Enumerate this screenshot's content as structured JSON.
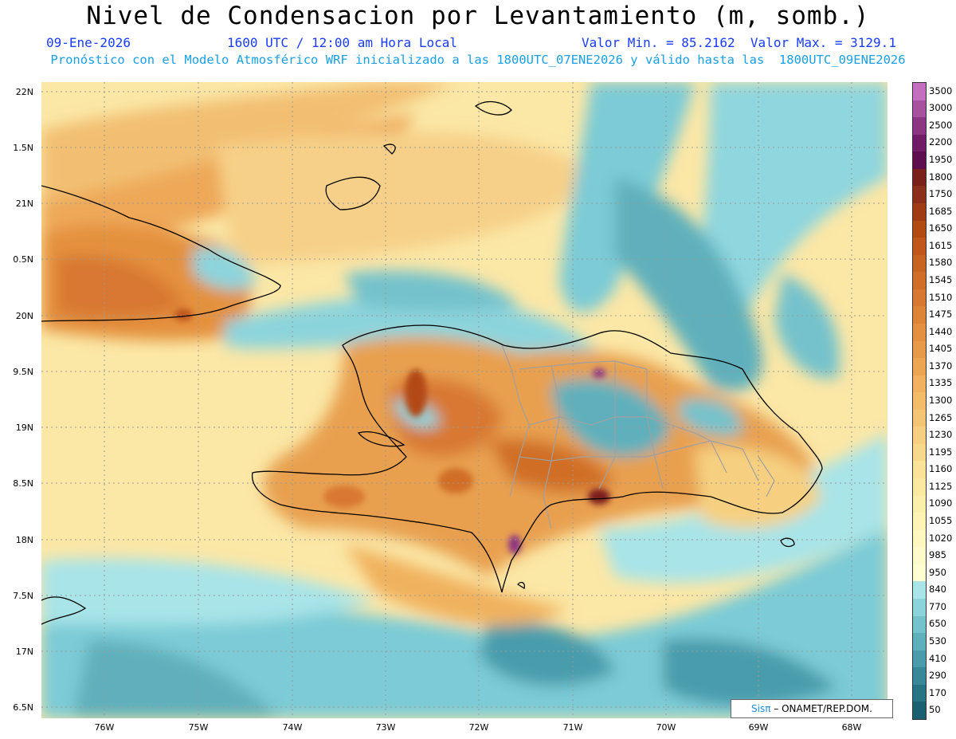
{
  "header": {
    "title": "Nivel de Condensacion por Levantamiento (m, somb.)",
    "date": "09-Ene-2026",
    "time": "1600 UTC / 12:00 am Hora Local",
    "minmax": "Valor Min. = 85.2162  Valor Max. = 3129.1",
    "model_info": "Pronóstico con el Modelo Atmosférico WRF inicializado a las 1800UTC_07ENE2026 y válido hasta las  1800UTC_09ENE2026"
  },
  "axes": {
    "lat_labels": [
      "22N",
      "1.5N",
      "21N",
      "0.5N",
      "20N",
      "9.5N",
      "19N",
      "8.5N",
      "18N",
      "7.5N",
      "17N",
      "6.5N"
    ],
    "lon_labels": [
      "76W",
      "75W",
      "74W",
      "73W",
      "72W",
      "71W",
      "70W",
      "69W",
      "68W"
    ]
  },
  "colorbar": {
    "labels": [
      "3500",
      "3000",
      "2500",
      "2200",
      "1950",
      "1800",
      "1750",
      "1685",
      "1650",
      "1615",
      "1580",
      "1545",
      "1510",
      "1475",
      "1440",
      "1405",
      "1370",
      "1335",
      "1300",
      "1265",
      "1230",
      "1195",
      "1160",
      "1125",
      "1090",
      "1055",
      "1020",
      "985",
      "950",
      "840",
      "770",
      "650",
      "530",
      "410",
      "290",
      "170",
      "50"
    ],
    "colors": [
      "#c46ec0",
      "#a8519f",
      "#8c3583",
      "#701c67",
      "#5e0e4e",
      "#7a1f1a",
      "#8c2f1a",
      "#a03c15",
      "#b34a12",
      "#c0561a",
      "#c86422",
      "#d06e28",
      "#d87830",
      "#de8436",
      "#e49040",
      "#e89a48",
      "#eca652",
      "#f0b25e",
      "#f2bc68",
      "#f4c674",
      "#f6d080",
      "#f8d98c",
      "#fae298",
      "#fbe9a2",
      "#fcefac",
      "#fdf4b6",
      "#fef8c0",
      "#fefbca",
      "#fffdd2",
      "#a8e4e8",
      "#8cd4dc",
      "#74c2cc",
      "#5eb0bc",
      "#4a9cac",
      "#38889a",
      "#287484",
      "#1a6070"
    ]
  },
  "credit": {
    "sis": "Sisπ",
    "org": "– ONAMET/REP.DOM."
  },
  "theme": {
    "land_line": "#000000",
    "province_line": "#a0a0a0",
    "grid_line": "#999999"
  }
}
